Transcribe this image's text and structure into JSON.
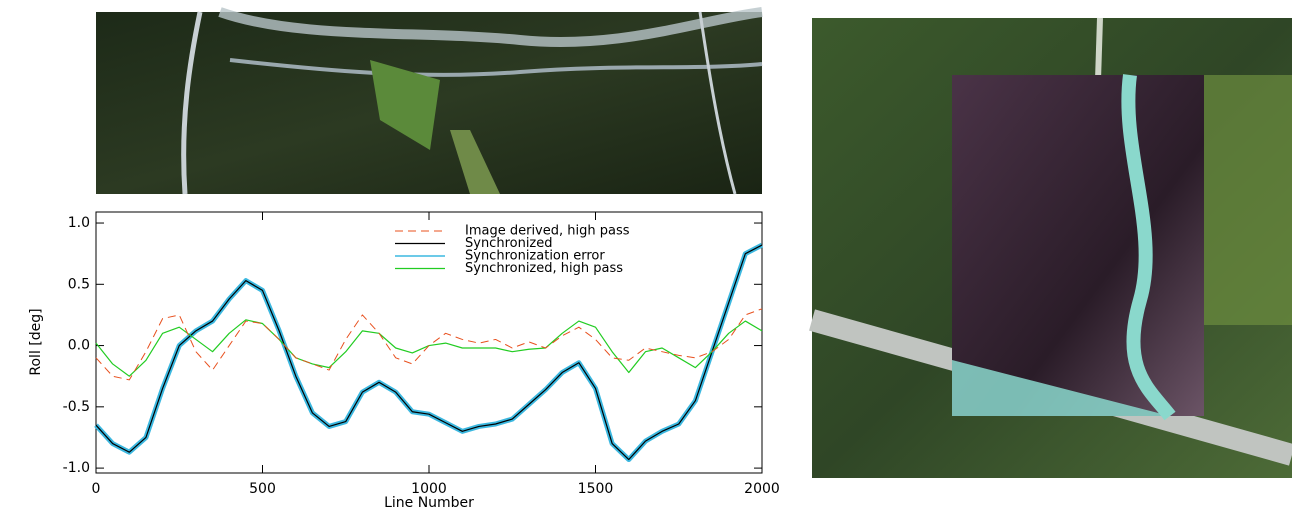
{
  "chart_data": {
    "type": "line",
    "x_label": "Line Number",
    "y_label": "Roll [deg]",
    "x": [
      0,
      50,
      100,
      150,
      200,
      250,
      300,
      350,
      400,
      450,
      500,
      550,
      600,
      650,
      700,
      750,
      800,
      850,
      900,
      950,
      1000,
      1050,
      1100,
      1150,
      1200,
      1250,
      1300,
      1350,
      1400,
      1450,
      1500,
      1550,
      1600,
      1650,
      1700,
      1750,
      1800,
      1850,
      1900,
      1950,
      2000
    ],
    "series": [
      {
        "name": "Image derived, high pass",
        "color": "#e8501e",
        "dashed": true,
        "linewidth": 1,
        "values": [
          -0.1,
          -0.25,
          -0.28,
          -0.05,
          0.22,
          0.25,
          -0.05,
          -0.2,
          0.0,
          0.2,
          0.18,
          0.05,
          -0.1,
          -0.15,
          -0.2,
          0.05,
          0.25,
          0.1,
          -0.1,
          -0.15,
          0.0,
          0.1,
          0.05,
          0.02,
          0.05,
          -0.02,
          0.03,
          -0.02,
          0.08,
          0.15,
          0.05,
          -0.1,
          -0.12,
          -0.02,
          -0.05,
          -0.08,
          -0.1,
          -0.05,
          0.05,
          0.25,
          0.3
        ]
      },
      {
        "name": "Synchronized",
        "color": "#000000",
        "dashed": false,
        "linewidth": 1.2,
        "values": [
          -0.65,
          -0.8,
          -0.87,
          -0.75,
          -0.35,
          0.0,
          0.12,
          0.2,
          0.38,
          0.53,
          0.45,
          0.12,
          -0.25,
          -0.55,
          -0.66,
          -0.62,
          -0.38,
          -0.3,
          -0.38,
          -0.54,
          -0.56,
          -0.63,
          -0.7,
          -0.66,
          -0.64,
          -0.6,
          -0.48,
          -0.36,
          -0.22,
          -0.14,
          -0.35,
          -0.8,
          -0.93,
          -0.78,
          -0.7,
          -0.64,
          -0.45,
          -0.05,
          0.35,
          0.75,
          0.82
        ]
      },
      {
        "name": "Synchronization error",
        "color": "#3cb8e0",
        "dashed": false,
        "linewidth": 5,
        "values": [
          -0.65,
          -0.8,
          -0.87,
          -0.75,
          -0.35,
          0.0,
          0.12,
          0.2,
          0.38,
          0.53,
          0.45,
          0.12,
          -0.25,
          -0.55,
          -0.66,
          -0.62,
          -0.38,
          -0.3,
          -0.38,
          -0.54,
          -0.56,
          -0.63,
          -0.7,
          -0.66,
          -0.64,
          -0.6,
          -0.48,
          -0.36,
          -0.22,
          -0.14,
          -0.35,
          -0.8,
          -0.93,
          -0.78,
          -0.7,
          -0.64,
          -0.45,
          -0.05,
          0.35,
          0.75,
          0.82
        ]
      },
      {
        "name": "Synchronized, high pass",
        "color": "#22cc22",
        "dashed": false,
        "linewidth": 1.2,
        "values": [
          0.02,
          -0.15,
          -0.25,
          -0.12,
          0.1,
          0.15,
          0.05,
          -0.05,
          0.1,
          0.21,
          0.18,
          0.05,
          -0.1,
          -0.15,
          -0.18,
          -0.05,
          0.12,
          0.1,
          -0.02,
          -0.06,
          0.0,
          0.02,
          -0.02,
          -0.02,
          -0.02,
          -0.05,
          -0.03,
          -0.02,
          0.1,
          0.2,
          0.15,
          -0.05,
          -0.22,
          -0.05,
          -0.02,
          -0.1,
          -0.18,
          -0.05,
          0.1,
          0.2,
          0.12
        ]
      }
    ],
    "xlim": [
      0,
      2000
    ],
    "xticks": [
      0,
      500,
      1000,
      1500,
      2000
    ],
    "ylim": [
      -1.04,
      1.09
    ],
    "yticks": [
      {
        "value": 1,
        "label": "1.0"
      },
      0.5,
      {
        "value": 0,
        "label": "0.0"
      },
      -0.5,
      {
        "value": -1,
        "label": "-1.0"
      }
    ],
    "legend": "upper right",
    "grid": false
  }
}
